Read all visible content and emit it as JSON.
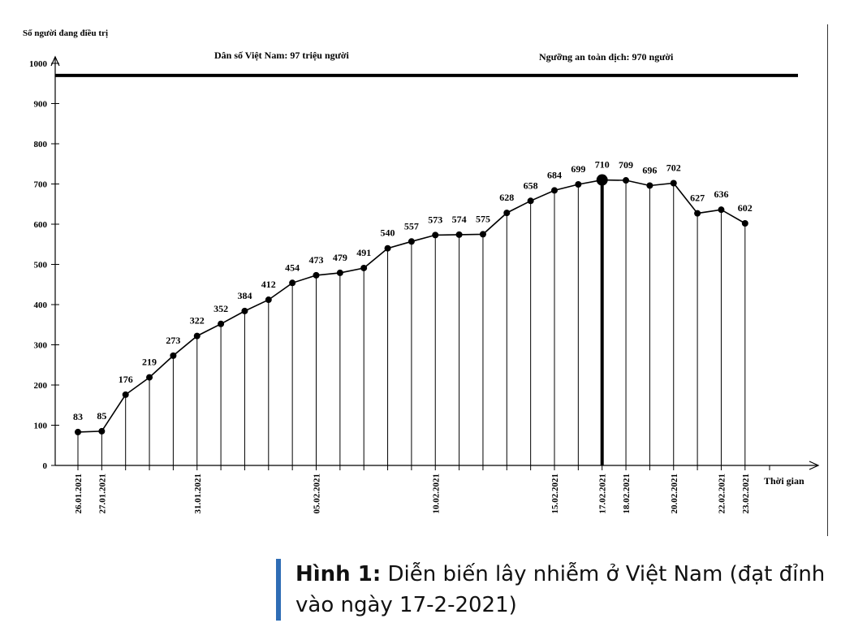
{
  "chart_data": {
    "type": "line",
    "ylabel": "Số người đang điều trị",
    "xlabel": "Thời gian",
    "ylim": [
      0,
      1000
    ],
    "yticks": [
      0,
      100,
      200,
      300,
      400,
      500,
      600,
      700,
      800,
      900,
      1000
    ],
    "annotations": {
      "population": "Dân số Việt Nam: 97 triệu người",
      "threshold_label": "Ngưỡng an toàn dịch: 970 người",
      "threshold_value": 970
    },
    "peak_index": 22,
    "x_tick_labels": [
      {
        "index": 0,
        "label": "26.01.2021"
      },
      {
        "index": 1,
        "label": "27.01.2021"
      },
      {
        "index": 5,
        "label": "31.01.2021"
      },
      {
        "index": 10,
        "label": "05.02.2021"
      },
      {
        "index": 15,
        "label": "10.02.2021"
      },
      {
        "index": 20,
        "label": "15.02.2021"
      },
      {
        "index": 22,
        "label": "17.02.2021"
      },
      {
        "index": 23,
        "label": "18.02.2021"
      },
      {
        "index": 25,
        "label": "20.02.2021"
      },
      {
        "index": 27,
        "label": "22.02.2021"
      },
      {
        "index": 28,
        "label": "23.02.2021"
      }
    ],
    "values": [
      83,
      85,
      176,
      219,
      273,
      322,
      352,
      384,
      412,
      454,
      473,
      479,
      491,
      540,
      557,
      573,
      574,
      575,
      628,
      658,
      684,
      699,
      710,
      709,
      696,
      702,
      627,
      636,
      602
    ]
  },
  "caption": {
    "prefix": "Hình 1:",
    "text": " Diễn biến lây nhiễm ở Việt Nam (đạt đỉnh vào ngày 17-2-2021)"
  }
}
